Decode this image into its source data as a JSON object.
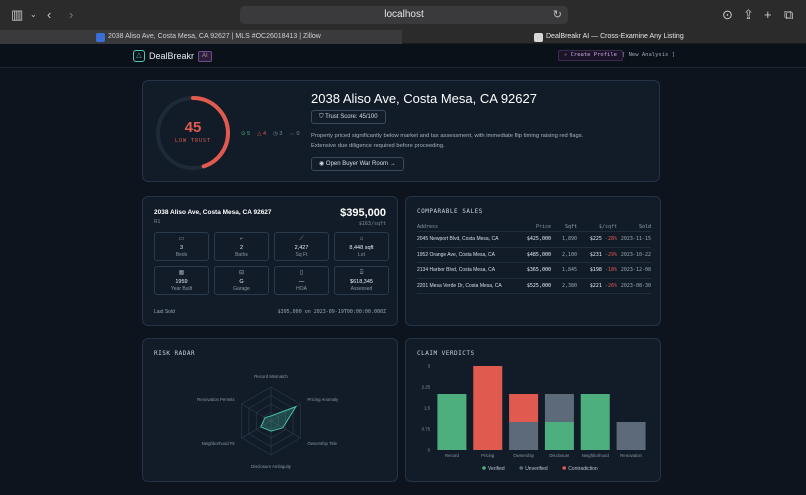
{
  "browser": {
    "url": "localhost",
    "tabs": [
      {
        "title": "2038 Aliso Ave, Costa Mesa, CA 92627 | MLS #OC26018413 | Zillow",
        "active": true
      },
      {
        "title": "DealBreakr AI — Cross-Examine Any Listing",
        "active": false
      }
    ]
  },
  "app": {
    "brand": "DealBreakr",
    "badge": "AI",
    "create_profile": "✧ Create Profile",
    "new_analysis": "[ New Analysis ]"
  },
  "hero": {
    "score": "45",
    "score_label": "LOW TRUST",
    "score_fraction": 0.45,
    "counts": {
      "verified": "5",
      "contradiction": "4",
      "unverified": "3",
      "other": "0"
    },
    "address": "2038 Aliso Ave, Costa Mesa, CA 92627",
    "trust_pill": "Trust Score: 45/100",
    "description": "Property priced significantly below market and tax assessment, with immediate flip timing raising red flags. Extensive due diligence required before proceeding.",
    "war_room_button": "Open Buyer War Room"
  },
  "property": {
    "address": "2038 Aliso Ave, Costa Mesa, CA 92627",
    "zoning": "R1",
    "price": "$395,000",
    "price_per_sqft": "$163/sqft",
    "facts": [
      {
        "icon": "bed-icon",
        "glyph": "▭",
        "value": "3",
        "label": "Beds"
      },
      {
        "icon": "bath-icon",
        "glyph": "⌐",
        "value": "2",
        "label": "Baths"
      },
      {
        "icon": "ruler-icon",
        "glyph": "⟋",
        "value": "2,427",
        "label": "Sq Ft"
      },
      {
        "icon": "lot-icon",
        "glyph": "⌂",
        "value": "8,448 sqft",
        "label": "Lot"
      },
      {
        "icon": "calendar-icon",
        "glyph": "▦",
        "value": "1959",
        "label": "Year Built"
      },
      {
        "icon": "garage-icon",
        "glyph": "⊟",
        "value": "G",
        "label": "Garage"
      },
      {
        "icon": "hoa-icon",
        "glyph": "▯",
        "value": "—",
        "label": "HOA"
      },
      {
        "icon": "assessed-icon",
        "glyph": "⌸",
        "value": "$618,345",
        "label": "Assessed"
      }
    ],
    "last_sold_label": "Last Sold",
    "last_sold_value": "$395,000 on 2023-09-19T00:00:00.000Z"
  },
  "comps": {
    "title": "COMPARABLE SALES",
    "headers": [
      "Address",
      "Price",
      "Sqft",
      "$/sqft",
      "Sold"
    ],
    "rows": [
      {
        "address": "2045 Newport Blvd, Costa Mesa, CA",
        "price": "$425,000",
        "sqft": "1,890",
        "ppsf": "$225",
        "diff": "-28%",
        "sold": "2023-11-15"
      },
      {
        "address": "1952 Orange Ave, Costa Mesa, CA",
        "price": "$485,000",
        "sqft": "2,100",
        "ppsf": "$231",
        "diff": "-29%",
        "sold": "2023-10-22"
      },
      {
        "address": "2134 Harbor Blvd, Costa Mesa, CA",
        "price": "$365,000",
        "sqft": "1,845",
        "ppsf": "$198",
        "diff": "-18%",
        "sold": "2023-12-08"
      },
      {
        "address": "2201 Mesa Verde Dr, Costa Mesa, CA",
        "price": "$525,000",
        "sqft": "2,380",
        "ppsf": "$221",
        "diff": "-26%",
        "sold": "2023-08-30"
      }
    ]
  },
  "radar": {
    "title": "RISK RADAR",
    "axes": [
      "Record Mismatch",
      "Pricing Anomaly",
      "Ownership Title",
      "Disclosure Ambiguity",
      "Neighborhood Fit",
      "Renovation Permits"
    ],
    "values": [
      0.15,
      0.85,
      0.4,
      0.3,
      0.35,
      0.2
    ]
  },
  "chart_data": {
    "type": "bar",
    "title": "CLAIM VERDICTS",
    "categories": [
      "Record",
      "Pricing",
      "Ownership",
      "Disclosure",
      "Neighborhood",
      "Renovation"
    ],
    "yticks": [
      "0",
      "0.75",
      "1.5",
      "2.25",
      "3"
    ],
    "ylim": [
      0,
      3
    ],
    "series": [
      {
        "name": "Verified",
        "color": "#4caf7d",
        "values": [
          2,
          0,
          0,
          1,
          2,
          0
        ]
      },
      {
        "name": "Unverified",
        "color": "#5c6a7a",
        "values": [
          0,
          0,
          1,
          1,
          0,
          1
        ]
      },
      {
        "name": "Contradiction",
        "color": "#e05a4f",
        "values": [
          0,
          3,
          1,
          0,
          0,
          0
        ]
      }
    ],
    "legend_position": "bottom"
  }
}
